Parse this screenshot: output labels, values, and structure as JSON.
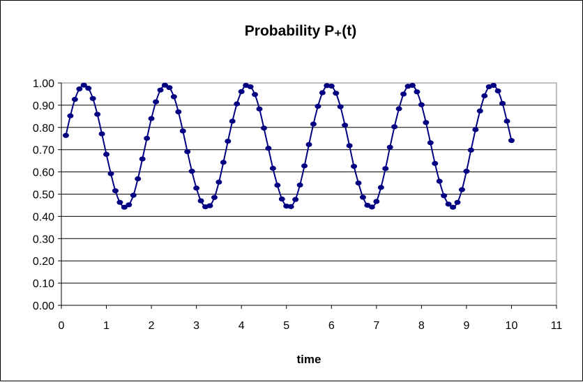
{
  "chart_data": {
    "type": "line",
    "title": "Probability P₊(t)",
    "xlabel": "time",
    "ylabel": "",
    "xlim": [
      0,
      11
    ],
    "ylim": [
      0,
      1
    ],
    "xticks": [
      "0",
      "1",
      "2",
      "3",
      "4",
      "5",
      "6",
      "7",
      "8",
      "9",
      "10",
      "11"
    ],
    "yticks": [
      "0.00",
      "0.10",
      "0.20",
      "0.30",
      "0.40",
      "0.50",
      "0.60",
      "0.70",
      "0.80",
      "0.90",
      "1.00"
    ],
    "grid": "horizontal",
    "legend": "none",
    "series": [
      {
        "color": "#000080",
        "marker": "circle",
        "x": [
          0.1,
          0.2,
          0.3,
          0.4,
          0.5,
          0.6,
          0.7,
          0.8,
          0.9,
          1.0,
          1.1,
          1.2,
          1.3,
          1.4,
          1.5,
          1.6,
          1.7,
          1.8,
          1.9,
          2.0,
          2.1,
          2.2,
          2.3,
          2.4,
          2.5,
          2.6,
          2.7,
          2.8,
          2.9,
          3.0,
          3.1,
          3.2,
          3.3,
          3.4,
          3.5,
          3.6,
          3.7,
          3.8,
          3.9,
          4.0,
          4.1,
          4.2,
          4.3,
          4.4,
          4.5,
          4.6,
          4.7,
          4.8,
          4.9,
          5.0,
          5.1,
          5.2,
          5.3,
          5.4,
          5.5,
          5.6,
          5.7,
          5.8,
          5.9,
          6.0,
          6.1,
          6.2,
          6.3,
          6.4,
          6.5,
          6.6,
          6.7,
          6.8,
          6.9,
          7.0,
          7.1,
          7.2,
          7.3,
          7.4,
          7.5,
          7.6,
          7.7,
          7.8,
          7.9,
          8.0,
          8.1,
          8.2,
          8.3,
          8.4,
          8.5,
          8.6,
          8.7,
          8.8,
          8.9,
          9.0,
          9.1,
          9.2,
          9.3,
          9.4,
          9.5,
          9.6,
          9.7,
          9.8,
          9.9,
          10.0
        ],
        "y": [
          0.764,
          0.852,
          0.926,
          0.973,
          0.99,
          0.976,
          0.93,
          0.859,
          0.771,
          0.679,
          0.592,
          0.515,
          0.463,
          0.441,
          0.452,
          0.495,
          0.569,
          0.658,
          0.751,
          0.84,
          0.915,
          0.968,
          0.99,
          0.979,
          0.938,
          0.87,
          0.784,
          0.691,
          0.603,
          0.527,
          0.47,
          0.443,
          0.448,
          0.485,
          0.554,
          0.643,
          0.738,
          0.828,
          0.906,
          0.961,
          0.989,
          0.983,
          0.948,
          0.883,
          0.797,
          0.706,
          0.616,
          0.54,
          0.478,
          0.446,
          0.444,
          0.476,
          0.541,
          0.627,
          0.723,
          0.815,
          0.895,
          0.956,
          0.988,
          0.986,
          0.954,
          0.893,
          0.81,
          0.718,
          0.625,
          0.55,
          0.486,
          0.45,
          0.442,
          0.467,
          0.53,
          0.615,
          0.711,
          0.803,
          0.884,
          0.95,
          0.985,
          0.989,
          0.96,
          0.902,
          0.822,
          0.731,
          0.638,
          0.558,
          0.493,
          0.455,
          0.441,
          0.463,
          0.52,
          0.603,
          0.698,
          0.79,
          0.874,
          0.942,
          0.983,
          0.989,
          0.964,
          0.908,
          0.828,
          0.741
        ]
      }
    ]
  }
}
